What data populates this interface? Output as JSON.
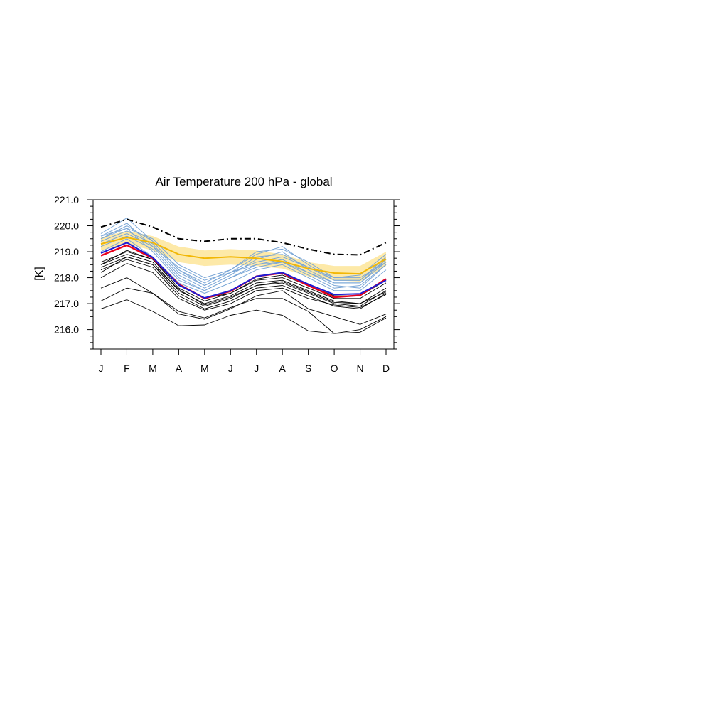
{
  "chart_data": {
    "type": "line",
    "title": "Air Temperature 200 hPa - global",
    "xlabel": "",
    "ylabel": "[K]",
    "categories": [
      "J",
      "F",
      "M",
      "A",
      "M",
      "J",
      "J",
      "A",
      "S",
      "O",
      "N",
      "D"
    ],
    "ylim": [
      215.25,
      221.0
    ],
    "yticks": [
      216.0,
      217.0,
      218.0,
      219.0,
      220.0,
      221.0
    ],
    "ytick_labels": [
      "216.0",
      "217.0",
      "218.0",
      "219.0",
      "220.0",
      "221.0"
    ],
    "grid": false,
    "legend": "none",
    "colors": {
      "reference": "#000000",
      "mean": "#f2b705",
      "band": "#fde9a8",
      "blue_models": "#7aa6d6",
      "black_models": "#000000",
      "red": "#e8001c",
      "blue": "#1c1cd6"
    },
    "band": {
      "lower": [
        219.05,
        219.3,
        219.05,
        218.6,
        218.45,
        218.5,
        218.45,
        218.35,
        218.05,
        217.9,
        217.85,
        218.45
      ],
      "upper": [
        219.55,
        219.8,
        219.6,
        219.2,
        219.05,
        219.1,
        219.05,
        218.9,
        218.6,
        218.45,
        218.45,
        219.0
      ]
    },
    "series": [
      {
        "role": "reference",
        "style": "dashed",
        "values": [
          219.95,
          220.25,
          219.95,
          219.5,
          219.4,
          219.5,
          219.5,
          219.35,
          219.1,
          218.9,
          218.88,
          219.35
        ]
      },
      {
        "role": "mean",
        "values": [
          219.3,
          219.55,
          219.35,
          218.9,
          218.75,
          218.8,
          218.75,
          218.62,
          218.35,
          218.18,
          218.15,
          218.72
        ]
      },
      {
        "role": "blue",
        "values": [
          219.7,
          220.3,
          219.4,
          218.3,
          217.8,
          218.3,
          218.9,
          219.2,
          218.5,
          217.9,
          217.9,
          218.8
        ]
      },
      {
        "role": "blue",
        "values": [
          219.6,
          220.1,
          219.2,
          218.1,
          217.6,
          218.1,
          218.7,
          219.0,
          218.3,
          217.8,
          217.8,
          218.7
        ]
      },
      {
        "role": "blue",
        "values": [
          219.5,
          219.9,
          219.0,
          217.9,
          217.5,
          218.0,
          218.5,
          218.7,
          218.2,
          217.7,
          217.6,
          218.5
        ]
      },
      {
        "role": "blue",
        "values": [
          219.4,
          219.8,
          219.3,
          218.2,
          217.7,
          218.2,
          218.6,
          218.8,
          218.4,
          218.0,
          218.0,
          218.6
        ]
      },
      {
        "role": "blue",
        "values": [
          219.2,
          219.6,
          219.1,
          218.0,
          217.5,
          218.0,
          218.4,
          218.6,
          218.1,
          217.6,
          217.7,
          218.5
        ]
      },
      {
        "role": "blue",
        "values": [
          219.0,
          219.5,
          218.8,
          217.8,
          217.4,
          217.8,
          218.3,
          218.5,
          218.0,
          217.5,
          217.5,
          218.3
        ]
      },
      {
        "role": "blue",
        "values": [
          219.6,
          219.9,
          219.5,
          218.5,
          218.0,
          218.3,
          219.0,
          219.1,
          218.6,
          218.0,
          218.1,
          218.9
        ]
      },
      {
        "role": "blue",
        "values": [
          219.3,
          219.7,
          219.2,
          218.4,
          217.9,
          218.2,
          218.8,
          218.9,
          218.4,
          217.9,
          217.9,
          218.7
        ]
      },
      {
        "role": "blue",
        "values": [
          219.5,
          220.0,
          219.4,
          218.3,
          217.7,
          218.2,
          218.5,
          218.6,
          218.2,
          217.8,
          217.8,
          218.6
        ]
      },
      {
        "role": "black",
        "values": [
          218.6,
          219.0,
          218.7,
          217.6,
          217.1,
          217.4,
          217.9,
          218.0,
          217.6,
          217.2,
          217.2,
          217.8
        ]
      },
      {
        "role": "black",
        "values": [
          218.5,
          218.9,
          218.6,
          217.5,
          217.0,
          217.3,
          217.8,
          217.9,
          217.5,
          217.1,
          217.0,
          217.6
        ]
      },
      {
        "role": "black",
        "values": [
          218.4,
          218.8,
          218.5,
          217.4,
          216.9,
          217.2,
          217.7,
          217.8,
          217.4,
          217.0,
          216.9,
          217.5
        ]
      },
      {
        "role": "black",
        "values": [
          218.3,
          218.7,
          218.4,
          217.3,
          216.8,
          217.1,
          217.6,
          217.7,
          217.3,
          216.9,
          216.8,
          217.4
        ]
      },
      {
        "role": "black",
        "values": [
          218.0,
          218.55,
          218.2,
          217.2,
          216.75,
          217.0,
          217.5,
          217.6,
          217.2,
          216.95,
          216.85,
          217.35
        ]
      },
      {
        "role": "black",
        "values": [
          217.6,
          218.0,
          217.4,
          216.6,
          216.4,
          216.8,
          217.3,
          217.5,
          216.8,
          216.5,
          216.2,
          216.6
        ]
      },
      {
        "role": "black",
        "values": [
          217.1,
          217.6,
          217.4,
          216.7,
          216.45,
          216.85,
          217.2,
          217.2,
          216.7,
          215.85,
          215.9,
          216.45
        ]
      },
      {
        "role": "black",
        "values": [
          216.8,
          217.15,
          216.7,
          216.15,
          216.18,
          216.55,
          216.75,
          216.55,
          215.95,
          215.85,
          216.0,
          216.5
        ]
      },
      {
        "role": "black",
        "values": [
          218.5,
          219.05,
          218.7,
          217.7,
          217.2,
          217.4,
          217.95,
          218.1,
          217.7,
          217.3,
          217.3,
          217.9
        ]
      },
      {
        "role": "black",
        "values": [
          218.2,
          218.8,
          218.5,
          217.55,
          216.95,
          217.25,
          217.7,
          217.85,
          217.45,
          217.05,
          217.0,
          217.45
        ]
      },
      {
        "role": "red",
        "values": [
          218.85,
          219.25,
          218.75,
          217.75,
          217.2,
          217.48,
          218.05,
          218.18,
          217.7,
          217.25,
          217.32,
          217.95
        ]
      },
      {
        "role": "blue-thick",
        "values": [
          218.95,
          219.35,
          218.78,
          217.72,
          217.22,
          217.5,
          218.05,
          218.2,
          217.75,
          217.35,
          217.38,
          217.9
        ]
      }
    ]
  }
}
